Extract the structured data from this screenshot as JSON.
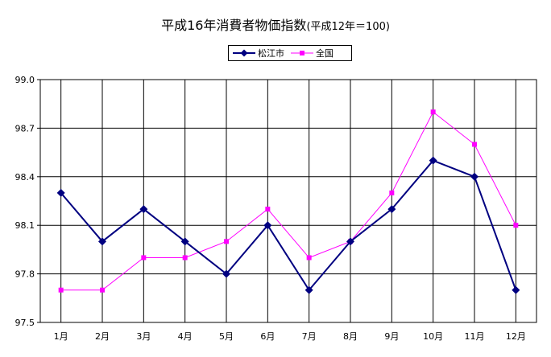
{
  "chart_data": {
    "type": "line",
    "title": "平成16年消費者物価指数",
    "subtitle": "(平成12年＝100)",
    "categories": [
      "1月",
      "2月",
      "3月",
      "4月",
      "5月",
      "6月",
      "7月",
      "8月",
      "9月",
      "10月",
      "11月",
      "12月"
    ],
    "series": [
      {
        "name": "松江市",
        "color": "#000080",
        "marker": "diamond",
        "values": [
          98.3,
          98.0,
          98.2,
          98.0,
          97.8,
          98.1,
          97.7,
          98.0,
          98.2,
          98.5,
          98.4,
          97.7
        ]
      },
      {
        "name": "全国",
        "color": "#FF00FF",
        "marker": "square",
        "values": [
          97.7,
          97.7,
          97.9,
          97.9,
          98.0,
          98.2,
          97.9,
          98.0,
          98.3,
          98.8,
          98.6,
          98.1
        ]
      }
    ],
    "ylim": [
      97.5,
      99.0
    ],
    "yticks": [
      "97.5",
      "97.8",
      "98.1",
      "98.4",
      "98.7",
      "99.0"
    ],
    "grid": true,
    "legend_position": "top-center"
  }
}
